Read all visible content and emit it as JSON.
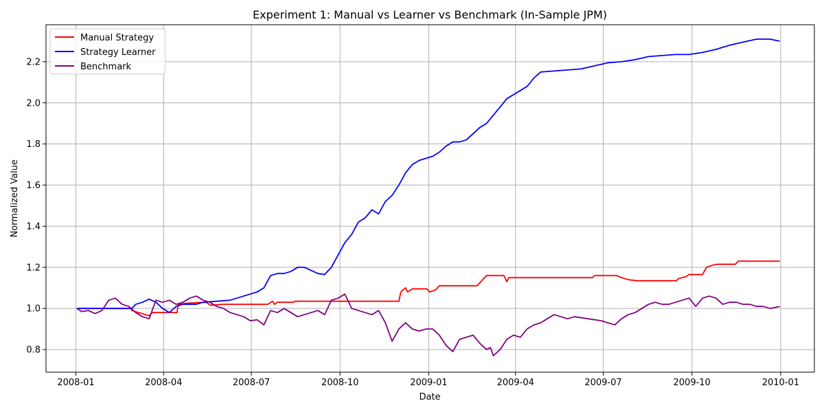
{
  "chart_data": {
    "type": "line",
    "title": "Experiment 1: Manual vs Learner vs Benchmark (In-Sample JPM)",
    "xlabel": "Date",
    "ylabel": "Normalized Value",
    "xlim": [
      "2007-12-01",
      "2010-02-05"
    ],
    "ylim": [
      0.69,
      2.38
    ],
    "xticks": [
      "2008-01",
      "2008-04",
      "2008-07",
      "2008-10",
      "2009-01",
      "2009-04",
      "2009-07",
      "2009-10",
      "2010-01"
    ],
    "yticks": [
      0.8,
      1.0,
      1.2,
      1.4,
      1.6,
      1.8,
      2.0,
      2.2
    ],
    "grid": true,
    "legend": "top-left",
    "series": [
      {
        "name": "Manual Strategy",
        "color": "#ff0000",
        "points": [
          [
            "2008-01-02",
            1.0
          ],
          [
            "2008-02-27",
            1.0
          ],
          [
            "2008-02-28",
            0.99
          ],
          [
            "2008-03-06",
            0.98
          ],
          [
            "2008-03-10",
            0.975
          ],
          [
            "2008-03-13",
            0.97
          ],
          [
            "2008-03-17",
            0.965
          ],
          [
            "2008-03-20",
            0.98
          ],
          [
            "2008-04-01",
            0.98
          ],
          [
            "2008-04-15",
            0.98
          ],
          [
            "2008-04-16",
            1.02
          ],
          [
            "2008-04-25",
            1.025
          ],
          [
            "2008-05-05",
            1.028
          ],
          [
            "2008-05-15",
            1.03
          ],
          [
            "2008-05-20",
            1.015
          ],
          [
            "2008-06-01",
            1.02
          ],
          [
            "2008-07-18",
            1.02
          ],
          [
            "2008-07-23",
            1.035
          ],
          [
            "2008-07-25",
            1.02
          ],
          [
            "2008-07-28",
            1.03
          ],
          [
            "2008-08-14",
            1.03
          ],
          [
            "2008-08-15",
            1.035
          ],
          [
            "2008-12-01",
            1.035
          ],
          [
            "2008-12-03",
            1.08
          ],
          [
            "2008-12-08",
            1.1
          ],
          [
            "2008-12-10",
            1.08
          ],
          [
            "2008-12-15",
            1.095
          ],
          [
            "2008-12-30",
            1.095
          ],
          [
            "2009-01-02",
            1.08
          ],
          [
            "2009-01-08",
            1.09
          ],
          [
            "2009-01-12",
            1.11
          ],
          [
            "2009-02-20",
            1.11
          ],
          [
            "2009-02-24",
            1.13
          ],
          [
            "2009-03-02",
            1.16
          ],
          [
            "2009-03-20",
            1.16
          ],
          [
            "2009-03-23",
            1.13
          ],
          [
            "2009-03-25",
            1.15
          ],
          [
            "2009-06-20",
            1.15
          ],
          [
            "2009-06-22",
            1.16
          ],
          [
            "2009-07-15",
            1.16
          ],
          [
            "2009-07-20",
            1.15
          ],
          [
            "2009-07-27",
            1.14
          ],
          [
            "2009-08-05",
            1.135
          ],
          [
            "2009-09-15",
            1.135
          ],
          [
            "2009-09-17",
            1.145
          ],
          [
            "2009-09-25",
            1.155
          ],
          [
            "2009-09-28",
            1.165
          ],
          [
            "2009-10-12",
            1.165
          ],
          [
            "2009-10-16",
            1.2
          ],
          [
            "2009-10-22",
            1.21
          ],
          [
            "2009-10-28",
            1.215
          ],
          [
            "2009-11-15",
            1.215
          ],
          [
            "2009-11-18",
            1.23
          ],
          [
            "2009-12-31",
            1.23
          ]
        ]
      },
      {
        "name": "Strategy Learner",
        "color": "#0000ff",
        "points": [
          [
            "2008-01-02",
            1.0
          ],
          [
            "2008-02-28",
            1.0
          ],
          [
            "2008-03-03",
            1.02
          ],
          [
            "2008-03-10",
            1.03
          ],
          [
            "2008-03-17",
            1.045
          ],
          [
            "2008-03-24",
            1.03
          ],
          [
            "2008-03-31",
            1.0
          ],
          [
            "2008-04-07",
            0.98
          ],
          [
            "2008-04-14",
            1.01
          ],
          [
            "2008-04-21",
            1.02
          ],
          [
            "2008-05-05",
            1.02
          ],
          [
            "2008-05-12",
            1.03
          ],
          [
            "2008-05-26",
            1.035
          ],
          [
            "2008-06-09",
            1.04
          ],
          [
            "2008-06-23",
            1.06
          ],
          [
            "2008-07-07",
            1.08
          ],
          [
            "2008-07-14",
            1.1
          ],
          [
            "2008-07-21",
            1.16
          ],
          [
            "2008-07-28",
            1.17
          ],
          [
            "2008-08-04",
            1.17
          ],
          [
            "2008-08-11",
            1.18
          ],
          [
            "2008-08-18",
            1.2
          ],
          [
            "2008-08-25",
            1.2
          ],
          [
            "2008-09-01",
            1.185
          ],
          [
            "2008-09-08",
            1.17
          ],
          [
            "2008-09-15",
            1.165
          ],
          [
            "2008-09-22",
            1.2
          ],
          [
            "2008-09-29",
            1.26
          ],
          [
            "2008-10-06",
            1.32
          ],
          [
            "2008-10-13",
            1.36
          ],
          [
            "2008-10-20",
            1.42
          ],
          [
            "2008-10-27",
            1.44
          ],
          [
            "2008-11-03",
            1.48
          ],
          [
            "2008-11-10",
            1.46
          ],
          [
            "2008-11-17",
            1.52
          ],
          [
            "2008-11-24",
            1.55
          ],
          [
            "2008-12-01",
            1.6
          ],
          [
            "2008-12-08",
            1.66
          ],
          [
            "2008-12-15",
            1.7
          ],
          [
            "2008-12-22",
            1.72
          ],
          [
            "2008-12-29",
            1.73
          ],
          [
            "2009-01-05",
            1.74
          ],
          [
            "2009-01-12",
            1.76
          ],
          [
            "2009-01-19",
            1.79
          ],
          [
            "2009-01-26",
            1.81
          ],
          [
            "2009-02-02",
            1.81
          ],
          [
            "2009-02-09",
            1.82
          ],
          [
            "2009-02-16",
            1.85
          ],
          [
            "2009-02-23",
            1.88
          ],
          [
            "2009-03-02",
            1.9
          ],
          [
            "2009-03-09",
            1.94
          ],
          [
            "2009-03-16",
            1.98
          ],
          [
            "2009-03-23",
            2.02
          ],
          [
            "2009-03-30",
            2.04
          ],
          [
            "2009-04-06",
            2.06
          ],
          [
            "2009-04-13",
            2.08
          ],
          [
            "2009-04-20",
            2.12
          ],
          [
            "2009-04-27",
            2.15
          ],
          [
            "2009-05-11",
            2.155
          ],
          [
            "2009-05-25",
            2.16
          ],
          [
            "2009-06-08",
            2.165
          ],
          [
            "2009-06-22",
            2.18
          ],
          [
            "2009-07-06",
            2.195
          ],
          [
            "2009-07-20",
            2.2
          ],
          [
            "2009-08-03",
            2.21
          ],
          [
            "2009-08-17",
            2.225
          ],
          [
            "2009-08-31",
            2.23
          ],
          [
            "2009-09-14",
            2.235
          ],
          [
            "2009-09-28",
            2.235
          ],
          [
            "2009-10-12",
            2.245
          ],
          [
            "2009-10-26",
            2.26
          ],
          [
            "2009-11-09",
            2.28
          ],
          [
            "2009-11-23",
            2.295
          ],
          [
            "2009-12-07",
            2.31
          ],
          [
            "2009-12-21",
            2.31
          ],
          [
            "2009-12-31",
            2.3
          ]
        ]
      },
      {
        "name": "Benchmark",
        "color": "#800080",
        "points": [
          [
            "2008-01-02",
            1.0
          ],
          [
            "2008-01-07",
            0.985
          ],
          [
            "2008-01-14",
            0.99
          ],
          [
            "2008-01-21",
            0.975
          ],
          [
            "2008-01-28",
            0.99
          ],
          [
            "2008-02-04",
            1.04
          ],
          [
            "2008-02-11",
            1.05
          ],
          [
            "2008-02-18",
            1.02
          ],
          [
            "2008-02-25",
            1.01
          ],
          [
            "2008-03-03",
            0.98
          ],
          [
            "2008-03-10",
            0.96
          ],
          [
            "2008-03-17",
            0.95
          ],
          [
            "2008-03-24",
            1.04
          ],
          [
            "2008-03-31",
            1.03
          ],
          [
            "2008-04-07",
            1.04
          ],
          [
            "2008-04-14",
            1.02
          ],
          [
            "2008-04-21",
            1.03
          ],
          [
            "2008-04-28",
            1.05
          ],
          [
            "2008-05-05",
            1.06
          ],
          [
            "2008-05-12",
            1.04
          ],
          [
            "2008-05-19",
            1.03
          ],
          [
            "2008-05-26",
            1.01
          ],
          [
            "2008-06-02",
            1.0
          ],
          [
            "2008-06-09",
            0.98
          ],
          [
            "2008-06-16",
            0.97
          ],
          [
            "2008-06-23",
            0.96
          ],
          [
            "2008-06-30",
            0.94
          ],
          [
            "2008-07-07",
            0.945
          ],
          [
            "2008-07-14",
            0.92
          ],
          [
            "2008-07-21",
            0.99
          ],
          [
            "2008-07-28",
            0.98
          ],
          [
            "2008-08-04",
            1.0
          ],
          [
            "2008-08-11",
            0.98
          ],
          [
            "2008-08-18",
            0.96
          ],
          [
            "2008-08-25",
            0.97
          ],
          [
            "2008-09-01",
            0.98
          ],
          [
            "2008-09-08",
            0.99
          ],
          [
            "2008-09-15",
            0.97
          ],
          [
            "2008-09-22",
            1.04
          ],
          [
            "2008-09-29",
            1.05
          ],
          [
            "2008-10-06",
            1.07
          ],
          [
            "2008-10-13",
            1.0
          ],
          [
            "2008-10-20",
            0.99
          ],
          [
            "2008-10-27",
            0.98
          ],
          [
            "2008-11-03",
            0.97
          ],
          [
            "2008-11-10",
            0.99
          ],
          [
            "2008-11-17",
            0.93
          ],
          [
            "2008-11-24",
            0.84
          ],
          [
            "2008-12-01",
            0.9
          ],
          [
            "2008-12-08",
            0.93
          ],
          [
            "2008-12-15",
            0.9
          ],
          [
            "2008-12-22",
            0.89
          ],
          [
            "2008-12-29",
            0.9
          ],
          [
            "2009-01-05",
            0.9
          ],
          [
            "2009-01-12",
            0.87
          ],
          [
            "2009-01-19",
            0.82
          ],
          [
            "2009-01-26",
            0.79
          ],
          [
            "2009-02-02",
            0.85
          ],
          [
            "2009-02-09",
            0.86
          ],
          [
            "2009-02-16",
            0.87
          ],
          [
            "2009-02-23",
            0.83
          ],
          [
            "2009-03-02",
            0.8
          ],
          [
            "2009-03-06",
            0.81
          ],
          [
            "2009-03-09",
            0.77
          ],
          [
            "2009-03-16",
            0.8
          ],
          [
            "2009-03-23",
            0.85
          ],
          [
            "2009-03-30",
            0.87
          ],
          [
            "2009-04-06",
            0.86
          ],
          [
            "2009-04-13",
            0.9
          ],
          [
            "2009-04-20",
            0.92
          ],
          [
            "2009-04-27",
            0.93
          ],
          [
            "2009-05-04",
            0.95
          ],
          [
            "2009-05-11",
            0.97
          ],
          [
            "2009-05-18",
            0.96
          ],
          [
            "2009-05-25",
            0.95
          ],
          [
            "2009-06-01",
            0.96
          ],
          [
            "2009-06-15",
            0.95
          ],
          [
            "2009-06-29",
            0.94
          ],
          [
            "2009-07-06",
            0.93
          ],
          [
            "2009-07-13",
            0.92
          ],
          [
            "2009-07-20",
            0.95
          ],
          [
            "2009-07-27",
            0.97
          ],
          [
            "2009-08-03",
            0.98
          ],
          [
            "2009-08-10",
            1.0
          ],
          [
            "2009-08-17",
            1.02
          ],
          [
            "2009-08-24",
            1.03
          ],
          [
            "2009-08-31",
            1.02
          ],
          [
            "2009-09-07",
            1.02
          ],
          [
            "2009-09-14",
            1.03
          ],
          [
            "2009-09-21",
            1.04
          ],
          [
            "2009-09-28",
            1.05
          ],
          [
            "2009-10-05",
            1.01
          ],
          [
            "2009-10-12",
            1.05
          ],
          [
            "2009-10-19",
            1.06
          ],
          [
            "2009-10-26",
            1.05
          ],
          [
            "2009-11-02",
            1.02
          ],
          [
            "2009-11-09",
            1.03
          ],
          [
            "2009-11-16",
            1.03
          ],
          [
            "2009-11-23",
            1.02
          ],
          [
            "2009-11-30",
            1.02
          ],
          [
            "2009-12-07",
            1.01
          ],
          [
            "2009-12-14",
            1.01
          ],
          [
            "2009-12-21",
            1.0
          ],
          [
            "2009-12-31",
            1.01
          ]
        ]
      }
    ]
  }
}
